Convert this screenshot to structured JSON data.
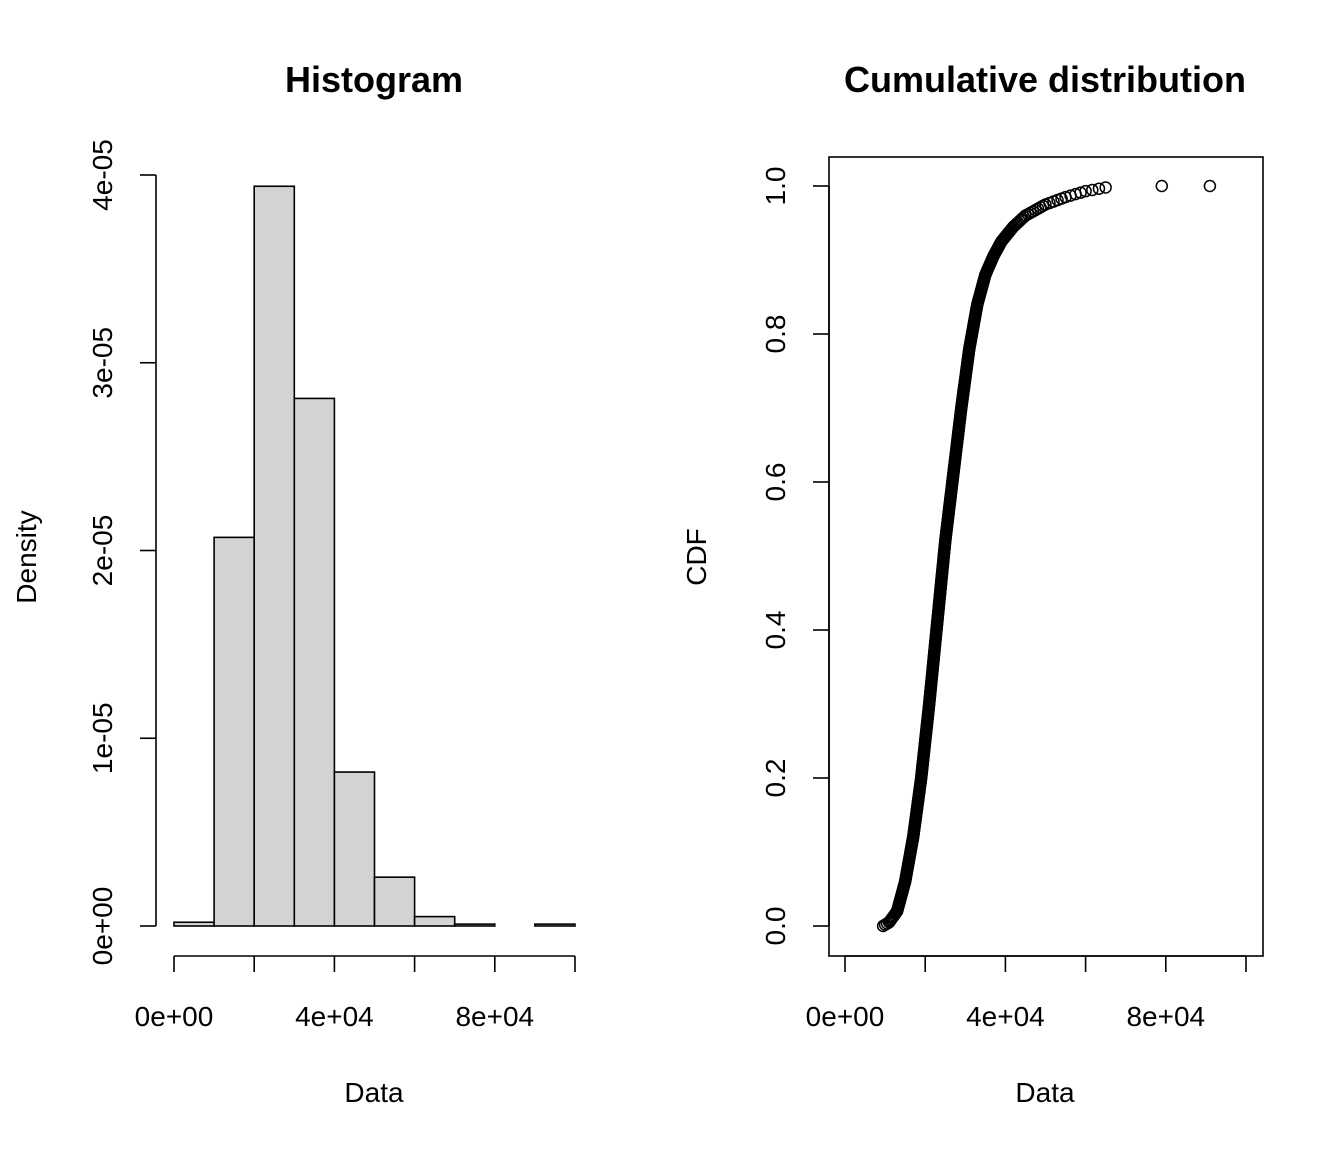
{
  "colors": {
    "bar_fill": "#d3d3d3",
    "stroke": "#000000",
    "background": "#ffffff"
  },
  "chart_data": [
    {
      "type": "bar",
      "title": "Histogram",
      "xlabel": "Data",
      "ylabel": "Density",
      "bin_edges": [
        0,
        10000,
        20000,
        30000,
        40000,
        50000,
        60000,
        70000,
        80000,
        90000,
        100000
      ],
      "values": [
        2e-07,
        2.07e-05,
        3.94e-05,
        2.81e-05,
        8.2e-06,
        2.6e-06,
        5e-07,
        1e-07,
        0,
        1e-07
      ],
      "xlim": [
        0,
        100000
      ],
      "ylim": [
        0,
        4e-05
      ],
      "x_ticks": [
        0,
        20000,
        40000,
        60000,
        80000,
        100000
      ],
      "x_tick_labels": [
        "0e+00",
        "4e+04",
        "8e+04"
      ],
      "y_ticks": [
        0,
        1e-05,
        2e-05,
        3e-05,
        4e-05
      ],
      "y_tick_labels": [
        "0e+00",
        "1e-05",
        "2e-05",
        "3e-05",
        "4e-05"
      ],
      "grid": false
    },
    {
      "type": "scatter",
      "title": "Cumulative distribution",
      "xlabel": "Data",
      "ylabel": "CDF",
      "cdf_knots": [
        [
          9500,
          0.0
        ],
        [
          11000,
          0.005
        ],
        [
          13000,
          0.02
        ],
        [
          15000,
          0.06
        ],
        [
          17000,
          0.12
        ],
        [
          19000,
          0.2
        ],
        [
          21000,
          0.3
        ],
        [
          23000,
          0.41
        ],
        [
          25000,
          0.52
        ],
        [
          27000,
          0.61
        ],
        [
          29000,
          0.7
        ],
        [
          31000,
          0.78
        ],
        [
          33000,
          0.84
        ],
        [
          35000,
          0.88
        ],
        [
          37000,
          0.905
        ],
        [
          39000,
          0.925
        ],
        [
          42000,
          0.945
        ],
        [
          45000,
          0.96
        ],
        [
          50000,
          0.975
        ],
        [
          55000,
          0.985
        ],
        [
          60000,
          0.993
        ],
        [
          65000,
          0.998
        ]
      ],
      "extra_points": [
        [
          79000,
          1.0
        ],
        [
          91000,
          1.0
        ]
      ],
      "xlim": [
        0,
        100000
      ],
      "ylim": [
        0,
        1
      ],
      "x_ticks": [
        0,
        20000,
        40000,
        60000,
        80000,
        100000
      ],
      "x_tick_labels": [
        "0e+00",
        "4e+04",
        "8e+04"
      ],
      "y_ticks": [
        0,
        0.2,
        0.4,
        0.6,
        0.8,
        1.0
      ],
      "y_tick_labels": [
        "0.0",
        "0.2",
        "0.4",
        "0.6",
        "0.8",
        "1.0"
      ],
      "grid": false
    }
  ]
}
